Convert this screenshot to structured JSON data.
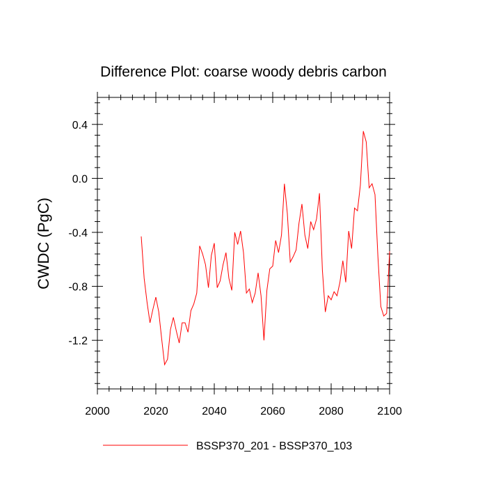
{
  "chart_data": {
    "type": "line",
    "title": "Difference Plot: coarse woody debris carbon",
    "xlabel": "",
    "ylabel": "CWDC  (PgC)",
    "xlim": [
      2000,
      2100
    ],
    "ylim": [
      -1.56,
      0.6
    ],
    "x_ticks": [
      2000,
      2020,
      2040,
      2060,
      2080,
      2100
    ],
    "x_tick_labels": [
      "2000",
      "2020",
      "2040",
      "2060",
      "2080",
      "2100"
    ],
    "y_ticks": [
      0.4,
      0.0,
      -0.4,
      -0.8,
      -1.2
    ],
    "y_tick_labels": [
      "0.4",
      "0.0",
      "-0.4",
      "-0.8",
      "-1.2"
    ],
    "grid": false,
    "legend_position": "bottom-center",
    "series": [
      {
        "name": "BSSP370_201 - BSSP370_103",
        "color": "#ff0000",
        "x": [
          2015,
          2016,
          2017,
          2018,
          2019,
          2020,
          2021,
          2022,
          2023,
          2024,
          2025,
          2026,
          2027,
          2028,
          2029,
          2030,
          2031,
          2032,
          2033,
          2034,
          2035,
          2036,
          2037,
          2038,
          2039,
          2040,
          2041,
          2042,
          2043,
          2044,
          2045,
          2046,
          2047,
          2048,
          2049,
          2050,
          2051,
          2052,
          2053,
          2054,
          2055,
          2056,
          2057,
          2058,
          2059,
          2060,
          2061,
          2062,
          2063,
          2064,
          2065,
          2066,
          2067,
          2068,
          2069,
          2070,
          2071,
          2072,
          2073,
          2074,
          2075,
          2076,
          2077,
          2078,
          2079,
          2080,
          2081,
          2082,
          2083,
          2084,
          2085,
          2086,
          2087,
          2088,
          2089,
          2090,
          2091,
          2092,
          2093,
          2094,
          2095,
          2096,
          2097,
          2098,
          2099,
          2100
        ],
        "values": [
          -0.43,
          -0.74,
          -0.92,
          -1.07,
          -0.97,
          -0.88,
          -0.99,
          -1.19,
          -1.38,
          -1.34,
          -1.12,
          -1.03,
          -1.13,
          -1.22,
          -1.07,
          -1.07,
          -1.14,
          -0.98,
          -0.93,
          -0.85,
          -0.5,
          -0.56,
          -0.64,
          -0.81,
          -0.57,
          -0.48,
          -0.81,
          -0.76,
          -0.64,
          -0.55,
          -0.74,
          -0.83,
          -0.4,
          -0.49,
          -0.39,
          -0.55,
          -0.85,
          -0.82,
          -0.92,
          -0.85,
          -0.7,
          -0.87,
          -1.2,
          -0.83,
          -0.67,
          -0.65,
          -0.46,
          -0.55,
          -0.42,
          -0.04,
          -0.26,
          -0.62,
          -0.58,
          -0.53,
          -0.33,
          -0.19,
          -0.42,
          -0.52,
          -0.32,
          -0.38,
          -0.3,
          -0.11,
          -0.68,
          -0.99,
          -0.87,
          -0.9,
          -0.84,
          -0.87,
          -0.77,
          -0.61,
          -0.77,
          -0.39,
          -0.52,
          -0.22,
          -0.24,
          -0.05,
          0.35,
          0.27,
          -0.07,
          -0.04,
          -0.12,
          -0.58,
          -0.95,
          -1.02,
          -1.0,
          -0.54
        ]
      }
    ]
  }
}
